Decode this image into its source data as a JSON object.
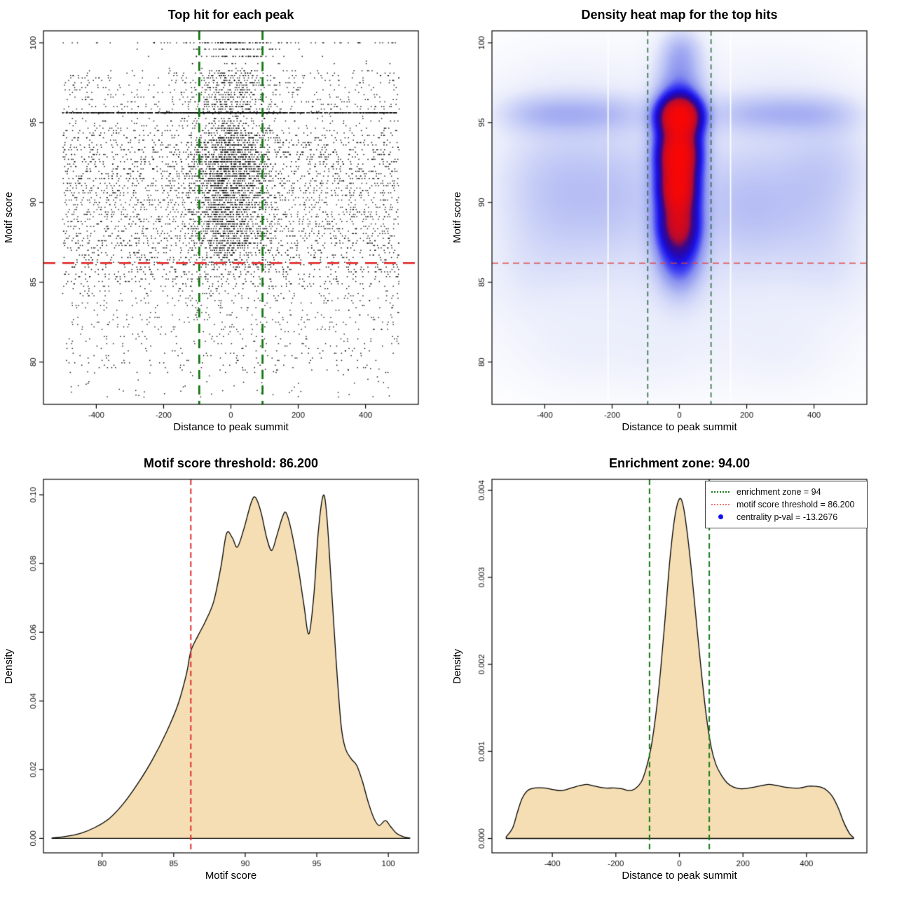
{
  "page": {
    "background": "#ffffff"
  },
  "colors": {
    "enrichment_green": "#157a15",
    "threshold_red": "#e12f2f",
    "density_fill_wheat": "#f5deb3",
    "legend_red": "#ee7777",
    "legend_blue_dot": "#1111ee",
    "point_black": "#000000"
  },
  "chart_data": [
    {
      "type": "scatter",
      "title": "Top hit for each peak",
      "xlabel": "Distance to peak summit",
      "ylabel": "Motif score",
      "xlim": [
        -557,
        557
      ],
      "ylim": [
        77.35,
        100.75
      ],
      "xticks": [
        -400,
        -200,
        0,
        200,
        400
      ],
      "xtick_labels": [
        "-400",
        "-200",
        "0",
        "200",
        "400"
      ],
      "yticks": [
        80,
        85,
        90,
        95,
        100
      ],
      "ytick_labels": [
        "80",
        "85",
        "90",
        "95",
        "100"
      ],
      "grid": false,
      "point_color": "#000000",
      "enrichment_zone_lines": {
        "x": [
          -94,
          94
        ],
        "color": "#117711",
        "dash": [
          13,
          9
        ],
        "width": 2.8
      },
      "threshold_line": {
        "y": 86.2,
        "color": "#e12f2f",
        "dash": [
          17,
          10
        ],
        "width": 2.8
      },
      "generator": {
        "seed": 1234567,
        "n_background": 4300,
        "n_center": 2500,
        "n_band": 1250,
        "band_y": 95.62,
        "quantize_step": 0.15,
        "rows": [
          {
            "y": 100.0,
            "n": 115,
            "spread": "wide"
          },
          {
            "y": 99.6,
            "n": 46,
            "spread": "center"
          },
          {
            "y": 99.15,
            "n": 42,
            "spread": "center"
          },
          {
            "y": 98.7,
            "n": 14,
            "spread": "wide"
          }
        ],
        "n_low_tail": 60
      }
    },
    {
      "type": "heatmap",
      "title": "Density heat map for the top hits",
      "xlabel": "Distance to peak summit",
      "ylabel": "Motif score",
      "xlim": [
        -557,
        557
      ],
      "ylim": [
        77.35,
        100.75
      ],
      "xticks": [
        -400,
        -200,
        0,
        200,
        400
      ],
      "xtick_labels": [
        "-400",
        "-200",
        "0",
        "200",
        "400"
      ],
      "yticks": [
        80,
        85,
        90,
        95,
        100
      ],
      "ytick_labels": [
        "80",
        "85",
        "90",
        "95",
        "100"
      ],
      "enrichment_zone_lines": {
        "x": [
          -94,
          94
        ],
        "color": "#2e6b3a",
        "dash": [
          7,
          5
        ],
        "width": 1.6
      },
      "threshold_line": {
        "y": 86.2,
        "color": "#e04040",
        "dash": [
          9,
          6
        ],
        "width": 1.5
      },
      "white_streaks": [
        -212,
        152
      ],
      "color_ramp": [
        [
          0.0,
          "#ffffff"
        ],
        [
          0.13,
          "#e9ecfb"
        ],
        [
          0.3,
          "#bcc4f5"
        ],
        [
          0.47,
          "#8890ef"
        ],
        [
          0.6,
          "#4343f2"
        ],
        [
          0.71,
          "#1b13e8"
        ],
        [
          0.79,
          "#2408b4"
        ],
        [
          0.86,
          "#3d0787"
        ],
        [
          0.92,
          "#b50a30"
        ],
        [
          1.0,
          "#ff0600"
        ]
      ],
      "blobs": [
        [
          0,
          95.45,
          40,
          0.8,
          3.4
        ],
        [
          -4,
          92.9,
          36,
          1.0,
          3.0
        ],
        [
          -6,
          90.85,
          34,
          0.95,
          2.8
        ],
        [
          -4,
          88.65,
          38,
          1.1,
          2.0
        ],
        [
          -2,
          91.9,
          44,
          2.8,
          0.9
        ],
        [
          0,
          94.25,
          40,
          1.3,
          1.0
        ],
        [
          -2,
          87.0,
          42,
          1.3,
          0.55
        ],
        [
          0,
          97.4,
          48,
          1.3,
          0.42
        ],
        [
          4,
          99.6,
          44,
          1.0,
          0.3
        ],
        [
          0,
          86.0,
          44,
          1.5,
          0.3
        ],
        [
          -460,
          95.6,
          75,
          0.85,
          0.17
        ],
        [
          -360,
          95.6,
          75,
          0.85,
          0.18
        ],
        [
          -260,
          95.6,
          75,
          0.85,
          0.16
        ],
        [
          -160,
          95.6,
          75,
          0.85,
          0.14
        ],
        [
          160,
          95.6,
          75,
          0.85,
          0.15
        ],
        [
          260,
          95.6,
          75,
          0.85,
          0.17
        ],
        [
          360,
          95.6,
          75,
          0.85,
          0.17
        ],
        [
          460,
          95.6,
          75,
          0.85,
          0.16
        ],
        [
          0,
          90.8,
          420,
          5.8,
          0.13
        ],
        [
          -340,
          92.6,
          140,
          2.3,
          0.12
        ],
        [
          -400,
          90.0,
          110,
          2.6,
          0.13
        ],
        [
          -260,
          89.2,
          120,
          2.6,
          0.11
        ],
        [
          -150,
          90.8,
          90,
          2.4,
          0.1
        ],
        [
          320,
          91.6,
          150,
          2.6,
          0.12
        ],
        [
          400,
          89.3,
          110,
          2.6,
          0.12
        ],
        [
          210,
          88.7,
          100,
          2.2,
          0.1
        ],
        [
          460,
          92.8,
          90,
          2.0,
          0.11
        ],
        [
          150,
          90.3,
          90,
          2.2,
          0.09
        ],
        [
          0,
          83.8,
          420,
          3.6,
          0.07
        ],
        [
          -320,
          80.6,
          120,
          1.8,
          0.05
        ],
        [
          300,
          80.5,
          120,
          1.8,
          0.05
        ],
        [
          -60,
          80.2,
          100,
          1.6,
          0.04
        ],
        [
          -340,
          97.6,
          150,
          1.5,
          0.055
        ],
        [
          320,
          97.7,
          150,
          1.5,
          0.055
        ],
        [
          -460,
          85.5,
          90,
          2.0,
          0.06
        ],
        [
          470,
          85.8,
          90,
          2.0,
          0.06
        ]
      ]
    },
    {
      "type": "density",
      "title": "Motif score threshold: 86.200",
      "xlabel": "Motif score",
      "ylabel": "Density",
      "xlim": [
        75.9,
        102.1
      ],
      "ylim": [
        -0.0042,
        0.1045
      ],
      "xticks": [
        80,
        85,
        90,
        95,
        100
      ],
      "xtick_labels": [
        "80",
        "85",
        "90",
        "95",
        "100"
      ],
      "yticks": [
        0.0,
        0.02,
        0.04,
        0.06,
        0.08,
        0.1
      ],
      "ytick_labels": [
        "0.00",
        "0.02",
        "0.04",
        "0.06",
        "0.08",
        "0.10"
      ],
      "fill": "#f5deb3",
      "stroke": "#000000",
      "vlines": [
        {
          "x": 86.2,
          "color": "#e12f2f",
          "dash": [
            8,
            5
          ],
          "width": 2
        }
      ],
      "points": [
        [
          76.5,
          0.0001
        ],
        [
          77.5,
          0.0006
        ],
        [
          78.5,
          0.0015
        ],
        [
          79.5,
          0.0032
        ],
        [
          80.5,
          0.0058
        ],
        [
          81.5,
          0.0102
        ],
        [
          82.5,
          0.016
        ],
        [
          83.5,
          0.0228
        ],
        [
          84.5,
          0.031
        ],
        [
          85.3,
          0.039
        ],
        [
          85.9,
          0.048
        ],
        [
          86.2,
          0.0545
        ],
        [
          86.7,
          0.059
        ],
        [
          87.2,
          0.063
        ],
        [
          87.8,
          0.069
        ],
        [
          88.3,
          0.079
        ],
        [
          88.7,
          0.0888
        ],
        [
          89.1,
          0.0875
        ],
        [
          89.45,
          0.0848
        ],
        [
          89.9,
          0.09
        ],
        [
          90.4,
          0.0975
        ],
        [
          90.7,
          0.0993
        ],
        [
          91.1,
          0.095
        ],
        [
          91.5,
          0.0875
        ],
        [
          91.85,
          0.0838
        ],
        [
          92.2,
          0.088
        ],
        [
          92.6,
          0.0935
        ],
        [
          92.85,
          0.0948
        ],
        [
          93.2,
          0.09
        ],
        [
          93.7,
          0.079
        ],
        [
          94.1,
          0.068
        ],
        [
          94.45,
          0.0595
        ],
        [
          94.8,
          0.071
        ],
        [
          95.1,
          0.089
        ],
        [
          95.45,
          0.0998
        ],
        [
          95.7,
          0.094
        ],
        [
          96.0,
          0.075
        ],
        [
          96.35,
          0.052
        ],
        [
          96.7,
          0.033
        ],
        [
          97.0,
          0.0262
        ],
        [
          97.4,
          0.0232
        ],
        [
          97.8,
          0.0212
        ],
        [
          98.2,
          0.0165
        ],
        [
          98.6,
          0.0105
        ],
        [
          99.0,
          0.0058
        ],
        [
          99.35,
          0.0038
        ],
        [
          99.8,
          0.0052
        ],
        [
          100.15,
          0.0035
        ],
        [
          100.6,
          0.0014
        ],
        [
          101.1,
          0.0004
        ],
        [
          101.5,
          0.0001
        ]
      ]
    },
    {
      "type": "density",
      "title": "Enrichment zone: 94.00",
      "xlabel": "Distance to peak summit",
      "ylabel": "Density",
      "xlim": [
        -590,
        590
      ],
      "ylim": [
        -0.000165,
        0.004125
      ],
      "xticks": [
        -400,
        -200,
        0,
        200,
        400
      ],
      "xtick_labels": [
        "-400",
        "-200",
        "0",
        "200",
        "400"
      ],
      "yticks": [
        0.0,
        0.001,
        0.002,
        0.003,
        0.004
      ],
      "ytick_labels": [
        "0.000",
        "0.001",
        "0.002",
        "0.003",
        "0.004"
      ],
      "fill": "#f5deb3",
      "stroke": "#000000",
      "vlines": [
        {
          "x": -94,
          "color": "#157a15",
          "dash": [
            8,
            5
          ],
          "width": 2
        },
        {
          "x": 94,
          "color": "#157a15",
          "dash": [
            8,
            5
          ],
          "width": 2
        }
      ],
      "points": [
        [
          -545,
          2e-05
        ],
        [
          -525,
          0.00012
        ],
        [
          -510,
          0.0003
        ],
        [
          -495,
          0.00046
        ],
        [
          -478,
          0.00055
        ],
        [
          -455,
          0.00058
        ],
        [
          -425,
          0.00058
        ],
        [
          -395,
          0.00056
        ],
        [
          -370,
          0.00055
        ],
        [
          -340,
          0.00058
        ],
        [
          -310,
          0.00061
        ],
        [
          -290,
          0.00062
        ],
        [
          -265,
          0.0006
        ],
        [
          -235,
          0.00058
        ],
        [
          -205,
          0.00058
        ],
        [
          -180,
          0.00057
        ],
        [
          -160,
          0.00055
        ],
        [
          -140,
          0.00057
        ],
        [
          -120,
          0.00065
        ],
        [
          -105,
          0.0008
        ],
        [
          -90,
          0.00103
        ],
        [
          -75,
          0.0014
        ],
        [
          -60,
          0.0019
        ],
        [
          -45,
          0.00253
        ],
        [
          -30,
          0.0032
        ],
        [
          -15,
          0.00368
        ],
        [
          0,
          0.0039
        ],
        [
          12,
          0.00382
        ],
        [
          25,
          0.0035
        ],
        [
          40,
          0.003
        ],
        [
          55,
          0.00243
        ],
        [
          70,
          0.00188
        ],
        [
          85,
          0.0014
        ],
        [
          100,
          0.00105
        ],
        [
          115,
          0.00085
        ],
        [
          130,
          0.00074
        ],
        [
          150,
          0.00064
        ],
        [
          170,
          0.00059
        ],
        [
          195,
          0.00057
        ],
        [
          220,
          0.00058
        ],
        [
          250,
          0.0006
        ],
        [
          280,
          0.00062
        ],
        [
          305,
          0.00061
        ],
        [
          330,
          0.00059
        ],
        [
          355,
          0.00058
        ],
        [
          380,
          0.00058
        ],
        [
          405,
          0.0006
        ],
        [
          425,
          0.0006
        ],
        [
          445,
          0.00059
        ],
        [
          465,
          0.00055
        ],
        [
          482,
          0.00048
        ],
        [
          500,
          0.00035
        ],
        [
          518,
          0.00018
        ],
        [
          535,
          6e-05
        ],
        [
          548,
          1e-05
        ]
      ],
      "legend": {
        "entries": [
          {
            "swatch": "dotted-line",
            "color": "#157a15",
            "label": "enrichment zone = 94"
          },
          {
            "swatch": "dotted-line",
            "color": "#ee7777",
            "label": "motif score threshold = 86.200"
          },
          {
            "swatch": "dot",
            "color": "#1111ee",
            "label": "centrality p-val = -13.2676"
          }
        ]
      }
    }
  ]
}
